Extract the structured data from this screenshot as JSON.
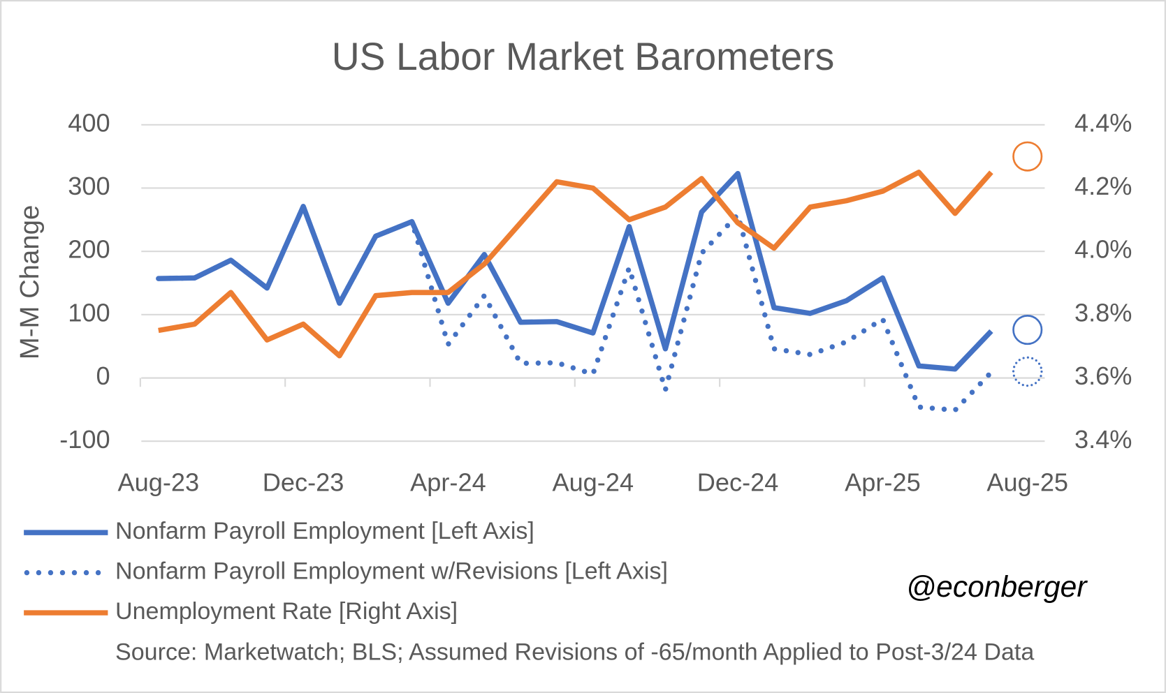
{
  "chart_data": {
    "type": "line",
    "title": "US Labor Market Barometers",
    "y_label": "M-M Change",
    "categories": [
      "Aug-23",
      null,
      null,
      null,
      "Dec-23",
      null,
      null,
      null,
      "Apr-24",
      null,
      null,
      null,
      "Aug-24",
      null,
      null,
      null,
      "Dec-24",
      null,
      null,
      null,
      "Apr-25",
      null,
      null,
      null,
      "Aug-25"
    ],
    "series": [
      {
        "name": "Nonfarm Payroll Employment [Left Axis]",
        "color": "#4472c4",
        "style": "solid",
        "values": [
          157,
          158,
          186,
          142,
          271,
          118,
          224,
          247,
          118,
          195,
          88,
          89,
          71,
          239,
          46,
          262,
          323,
          111,
          102,
          122,
          158,
          19,
          14,
          74,
          null
        ],
        "projected": 76
      },
      {
        "name": "Nonfarm Payroll Employment w/Revisions [Left Axis]",
        "color": "#4472c4",
        "style": "dotted",
        "values": [
          157,
          158,
          186,
          142,
          271,
          118,
          224,
          247,
          53,
          130,
          23,
          24,
          6,
          174,
          -19,
          197,
          258,
          46,
          37,
          57,
          93,
          -46,
          -51,
          9,
          null
        ],
        "projected": 10
      },
      {
        "name": "Unemployment Rate [Right Axis]",
        "color": "#ed7d31",
        "style": "solid",
        "axis": "y2",
        "values": [
          3.75,
          3.77,
          3.87,
          3.72,
          3.77,
          3.67,
          3.86,
          3.87,
          3.87,
          3.96,
          4.09,
          4.22,
          4.2,
          4.1,
          4.14,
          4.23,
          4.09,
          4.01,
          4.14,
          4.16,
          4.19,
          4.25,
          4.12,
          4.25,
          null
        ],
        "projected": 4.3
      }
    ],
    "ylim": [
      -100,
      400
    ],
    "yticks": [
      -100,
      0,
      100,
      200,
      300,
      400
    ],
    "y2lim": [
      3.4,
      4.4
    ],
    "y2ticks": [
      {
        "value": 3.4,
        "label": "3.4%"
      },
      {
        "value": 3.6,
        "label": "3.6%"
      },
      {
        "value": 3.8,
        "label": "3.8%"
      },
      {
        "value": 4.0,
        "label": "4.0%"
      },
      {
        "value": 4.2,
        "label": "4.2%"
      },
      {
        "value": 4.4,
        "label": "4.4%"
      }
    ],
    "grid": true,
    "legend": "bottom",
    "source": "Source: Marketwatch; BLS; Assumed Revisions of -65/month Applied to Post-3/24 Data",
    "handle": "@econberger"
  }
}
